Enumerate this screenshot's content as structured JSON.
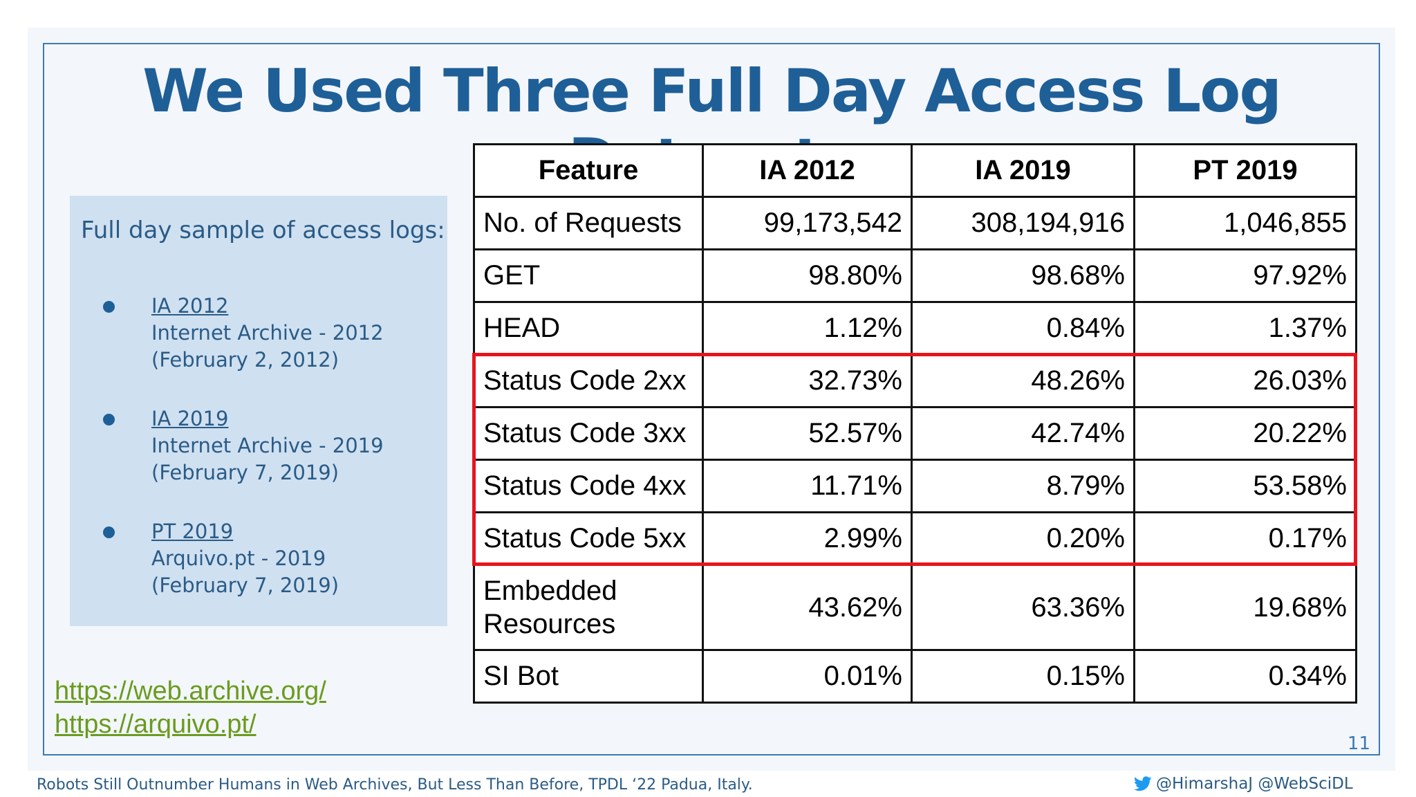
{
  "slide": {
    "title": "We Used Three Full Day Access Log Datasets",
    "page_number": "11"
  },
  "sidebar": {
    "heading": "Full day sample of access logs:",
    "datasets": [
      {
        "name": "IA 2012",
        "desc": "Internet Archive - 2012",
        "date": "(February 2, 2012)"
      },
      {
        "name": "IA 2019",
        "desc": "Internet Archive - 2019",
        "date": "(February 7, 2019)"
      },
      {
        "name": "PT 2019",
        "desc": "Arquivo.pt - 2019",
        "date": "(February 7, 2019)"
      }
    ]
  },
  "links": [
    {
      "label": "https://web.archive.org/"
    },
    {
      "label": "https://arquivo.pt/"
    }
  ],
  "table": {
    "headers": [
      "Feature",
      "IA 2012",
      "IA 2019",
      "PT 2019"
    ],
    "rows": [
      {
        "feature": "No. of Requests",
        "values": [
          "99,173,542",
          "308,194,916",
          "1,046,855"
        ]
      },
      {
        "feature": "GET",
        "values": [
          "98.80%",
          "98.68%",
          "97.92%"
        ]
      },
      {
        "feature": "HEAD",
        "values": [
          "1.12%",
          "0.84%",
          "1.37%"
        ]
      },
      {
        "feature": "Status Code 2xx",
        "values": [
          "32.73%",
          "48.26%",
          "26.03%"
        ]
      },
      {
        "feature": "Status Code 3xx",
        "values": [
          "52.57%",
          "42.74%",
          "20.22%"
        ]
      },
      {
        "feature": "Status Code 4xx",
        "values": [
          "11.71%",
          "8.79%",
          "53.58%"
        ]
      },
      {
        "feature": "Status Code 5xx",
        "values": [
          "2.99%",
          "0.20%",
          "0.17%"
        ]
      },
      {
        "feature": "Embedded Resources",
        "values": [
          "43.62%",
          "63.36%",
          "19.68%"
        ]
      },
      {
        "feature": "SI Bot",
        "values": [
          "0.01%",
          "0.15%",
          "0.34%"
        ]
      }
    ]
  },
  "footer": {
    "text": "Robots Still Outnumber Humans in Web Archives, But Less Than Before, TPDL ‘22 Padua, Italy.",
    "handles": "@HimarshaJ @WebSciDL"
  },
  "colors": {
    "title": "#1f5f97",
    "highlight": "#e8141d",
    "link": "#6a9b1f",
    "sidebar_bg": "#cfe0f1"
  }
}
